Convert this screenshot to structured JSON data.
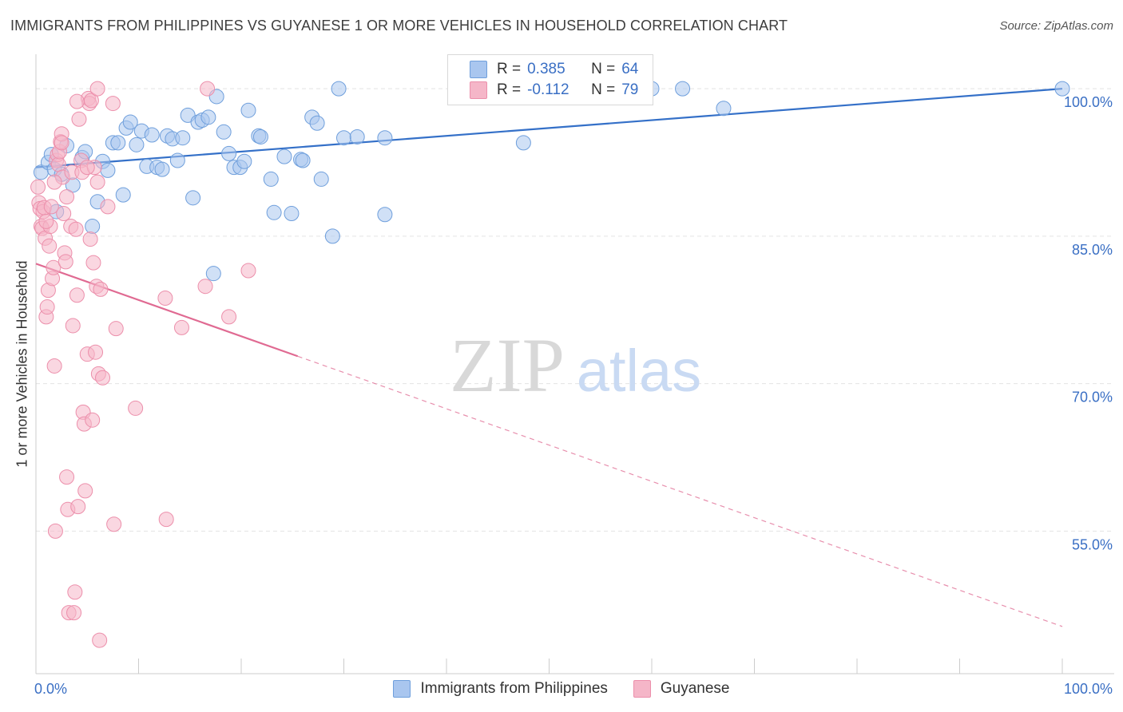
{
  "title": "IMMIGRANTS FROM PHILIPPINES VS GUYANESE 1 OR MORE VEHICLES IN HOUSEHOLD CORRELATION CHART",
  "source": "Source: ZipAtlas.com",
  "watermark": {
    "zip": "ZIP",
    "atlas": "atlas"
  },
  "legend_top": [
    {
      "r_label": "R =",
      "r_value": "0.385",
      "n_label": "N =",
      "n_value": "64",
      "color": "#a9c6ef"
    },
    {
      "r_label": "R =",
      "r_value": "-0.112",
      "n_label": "N =",
      "n_value": "79",
      "color": "#f5b6c8"
    }
  ],
  "chart_data": {
    "type": "scatter",
    "xlabel": "",
    "ylabel": "1 or more Vehicles in Household",
    "xlim": [
      0,
      100
    ],
    "ylim": [
      40.5,
      103.5
    ],
    "x_tick_labels": [
      {
        "value": 0,
        "label": "0.0%"
      },
      {
        "value": 100,
        "label": "100.0%"
      }
    ],
    "y_tick_labels": [
      {
        "value": 100,
        "label": "100.0%"
      },
      {
        "value": 85,
        "label": "85.0%"
      },
      {
        "value": 70,
        "label": "70.0%"
      },
      {
        "value": 55,
        "label": "55.0%"
      }
    ],
    "series": [
      {
        "name": "Immigrants from Philippines",
        "color": "#a9c6ef",
        "stroke": "#6f9fdc",
        "trend": {
          "x0": 0,
          "y0": 92.0,
          "x1": 100,
          "y1": 100.0,
          "solid_to": 100,
          "color": "#3470c8"
        },
        "points": [
          [
            0.5,
            91.5
          ],
          [
            1.2,
            92.5
          ],
          [
            1.5,
            93.3
          ],
          [
            1.8,
            91.8
          ],
          [
            2.0,
            87.5
          ],
          [
            2.5,
            91.3
          ],
          [
            3.0,
            94.2
          ],
          [
            3.6,
            90.2
          ],
          [
            4.5,
            93.0
          ],
          [
            4.8,
            93.6
          ],
          [
            5.5,
            86.0
          ],
          [
            6.0,
            88.5
          ],
          [
            6.5,
            92.6
          ],
          [
            7.0,
            91.7
          ],
          [
            7.5,
            94.5
          ],
          [
            8.0,
            94.5
          ],
          [
            8.5,
            89.2
          ],
          [
            8.8,
            96.0
          ],
          [
            9.2,
            96.6
          ],
          [
            9.8,
            94.3
          ],
          [
            10.3,
            95.7
          ],
          [
            10.8,
            92.1
          ],
          [
            11.3,
            95.3
          ],
          [
            11.8,
            92.0
          ],
          [
            12.3,
            91.8
          ],
          [
            12.8,
            95.2
          ],
          [
            13.3,
            94.9
          ],
          [
            13.8,
            92.7
          ],
          [
            14.3,
            95.0
          ],
          [
            14.8,
            97.3
          ],
          [
            15.3,
            88.9
          ],
          [
            15.8,
            96.6
          ],
          [
            16.2,
            96.8
          ],
          [
            16.8,
            97.1
          ],
          [
            17.3,
            81.2
          ],
          [
            17.6,
            99.2
          ],
          [
            18.3,
            95.6
          ],
          [
            18.8,
            93.4
          ],
          [
            19.3,
            92.0
          ],
          [
            19.9,
            92.0
          ],
          [
            20.3,
            92.6
          ],
          [
            20.7,
            97.8
          ],
          [
            21.7,
            95.2
          ],
          [
            21.9,
            95.1
          ],
          [
            22.9,
            90.8
          ],
          [
            23.2,
            87.4
          ],
          [
            24.2,
            93.1
          ],
          [
            24.9,
            87.3
          ],
          [
            25.8,
            92.8
          ],
          [
            26.0,
            92.7
          ],
          [
            26.9,
            97.1
          ],
          [
            27.4,
            96.5
          ],
          [
            27.8,
            90.8
          ],
          [
            28.9,
            85.0
          ],
          [
            29.5,
            100.0
          ],
          [
            30.0,
            95.0
          ],
          [
            31.3,
            95.1
          ],
          [
            34.0,
            95.0
          ],
          [
            34.0,
            87.2
          ],
          [
            47.5,
            94.5
          ],
          [
            60.0,
            100.0
          ],
          [
            63.0,
            100.0
          ],
          [
            67.0,
            98.0
          ],
          [
            100.0,
            100.0
          ]
        ]
      },
      {
        "name": "Guyanese",
        "color": "#f5b6c8",
        "stroke": "#ec8fab",
        "trend": {
          "x0": 0,
          "y0": 82.2,
          "x1": 100,
          "y1": 45.3,
          "solid_to": 25.5,
          "color": "#e06a92"
        },
        "points": [
          [
            0.2,
            90.0
          ],
          [
            0.3,
            88.4
          ],
          [
            0.4,
            87.8
          ],
          [
            0.5,
            86.0
          ],
          [
            0.6,
            85.8
          ],
          [
            0.7,
            87.5
          ],
          [
            0.8,
            87.9
          ],
          [
            0.9,
            84.8
          ],
          [
            1.0,
            76.8
          ],
          [
            1.1,
            77.8
          ],
          [
            1.2,
            79.5
          ],
          [
            1.3,
            84.0
          ],
          [
            1.4,
            86.0
          ],
          [
            1.5,
            88.0
          ],
          [
            1.6,
            80.7
          ],
          [
            1.7,
            81.8
          ],
          [
            1.8,
            71.8
          ],
          [
            1.9,
            55.0
          ],
          [
            2.0,
            92.7
          ],
          [
            2.1,
            93.3
          ],
          [
            2.2,
            92.3
          ],
          [
            2.3,
            93.6
          ],
          [
            2.4,
            94.6
          ],
          [
            2.5,
            95.4
          ],
          [
            2.6,
            91.0
          ],
          [
            2.7,
            87.3
          ],
          [
            2.8,
            83.3
          ],
          [
            2.9,
            82.4
          ],
          [
            3.0,
            60.5
          ],
          [
            3.1,
            57.2
          ],
          [
            3.2,
            46.7
          ],
          [
            3.4,
            86.0
          ],
          [
            3.5,
            91.5
          ],
          [
            3.6,
            75.9
          ],
          [
            3.7,
            46.7
          ],
          [
            3.8,
            48.8
          ],
          [
            3.9,
            85.7
          ],
          [
            4.0,
            79.0
          ],
          [
            4.1,
            57.5
          ],
          [
            4.2,
            96.9
          ],
          [
            4.4,
            92.7
          ],
          [
            4.5,
            91.5
          ],
          [
            4.6,
            67.1
          ],
          [
            4.7,
            65.9
          ],
          [
            4.8,
            59.1
          ],
          [
            5.0,
            73.0
          ],
          [
            5.1,
            99.0
          ],
          [
            5.2,
            98.5
          ],
          [
            5.3,
            84.7
          ],
          [
            5.4,
            98.8
          ],
          [
            5.5,
            66.3
          ],
          [
            5.6,
            82.3
          ],
          [
            5.7,
            92.0
          ],
          [
            5.8,
            73.2
          ],
          [
            5.9,
            79.9
          ],
          [
            6.0,
            90.5
          ],
          [
            6.1,
            71.0
          ],
          [
            6.2,
            43.9
          ],
          [
            6.3,
            79.6
          ],
          [
            6.5,
            70.6
          ],
          [
            7.5,
            98.5
          ],
          [
            7.6,
            55.7
          ],
          [
            7.8,
            75.6
          ],
          [
            9.7,
            67.5
          ],
          [
            12.6,
            78.7
          ],
          [
            12.7,
            56.2
          ],
          [
            14.2,
            75.7
          ],
          [
            16.5,
            79.9
          ],
          [
            16.7,
            100.0
          ],
          [
            18.8,
            76.8
          ],
          [
            20.7,
            81.5
          ],
          [
            6.0,
            100.0
          ],
          [
            4.0,
            98.7
          ],
          [
            2.5,
            94.5
          ],
          [
            1.8,
            90.5
          ],
          [
            1.0,
            86.5
          ],
          [
            3.0,
            89.0
          ],
          [
            5.0,
            92.0
          ],
          [
            7.0,
            88.0
          ]
        ]
      }
    ]
  }
}
